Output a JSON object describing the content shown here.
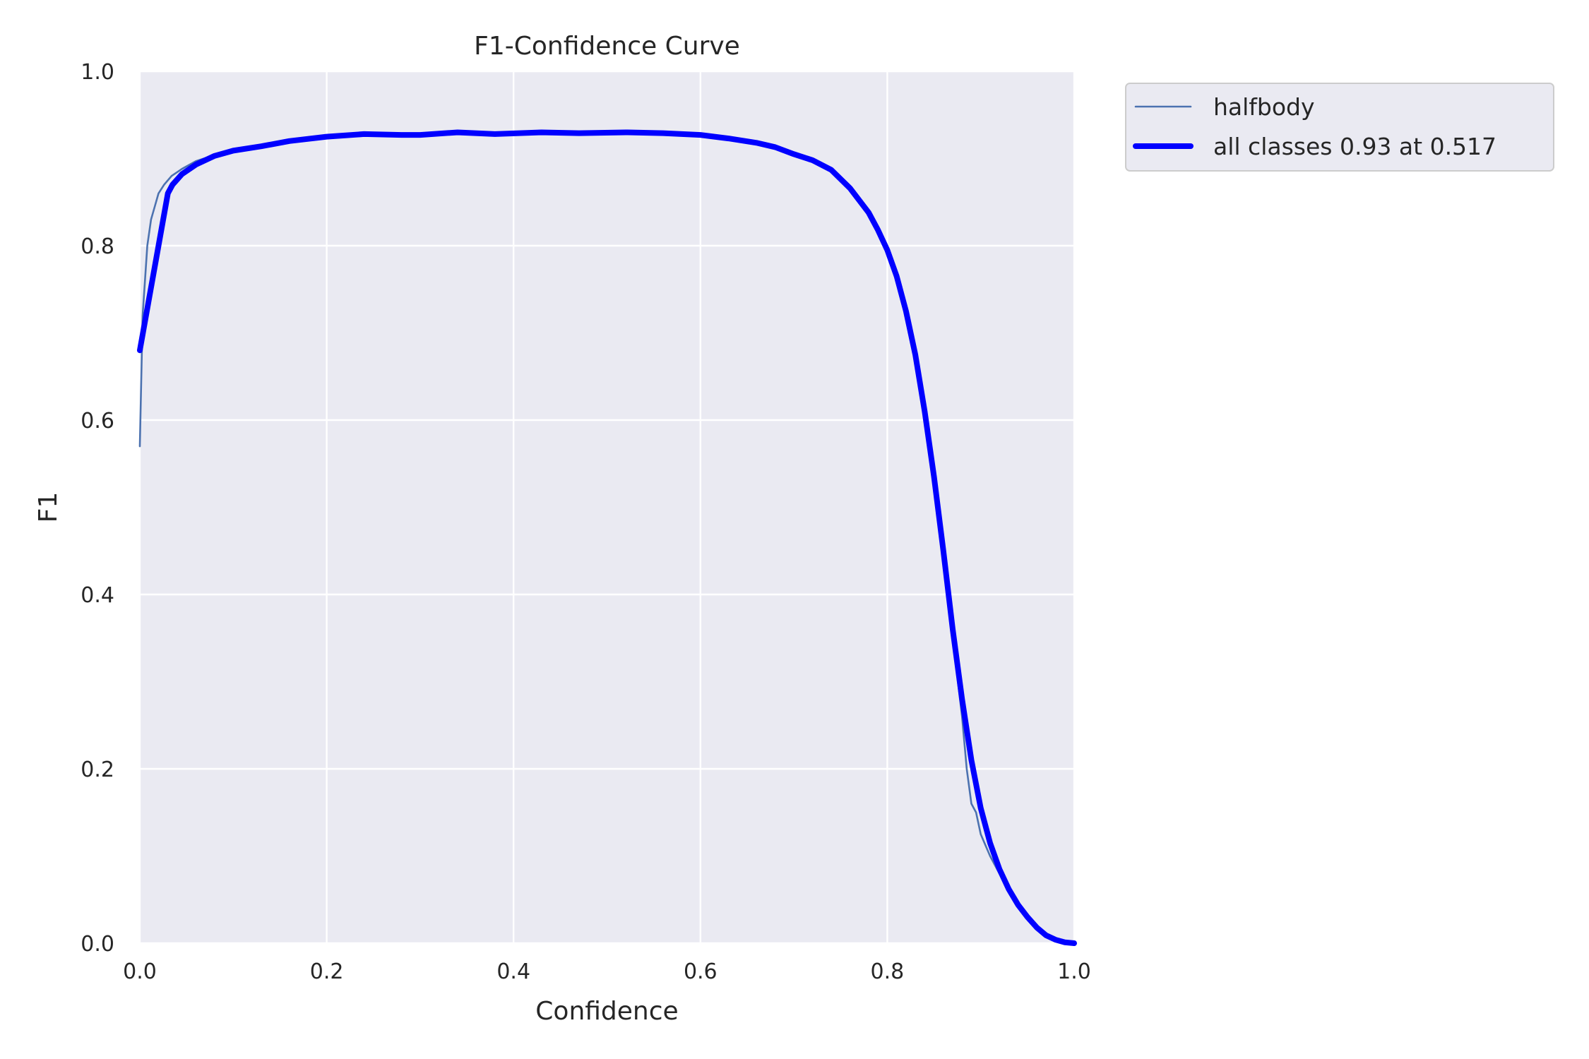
{
  "chart_data": {
    "type": "line",
    "title": "F1-Confidence Curve",
    "xlabel": "Confidence",
    "ylabel": "F1",
    "xlim": [
      0,
      1
    ],
    "ylim": [
      0,
      1
    ],
    "xticks": [
      "0.0",
      "0.2",
      "0.4",
      "0.6",
      "0.8",
      "1.0"
    ],
    "yticks": [
      "0.0",
      "0.2",
      "0.4",
      "0.6",
      "0.8",
      "1.0"
    ],
    "grid": true,
    "legend_position": "outside-top-right",
    "background_color": "#eaeaf2",
    "series": [
      {
        "name": "halfbody",
        "color": "#4c72b0",
        "style": "thin",
        "x": [
          0.0,
          0.003,
          0.008,
          0.012,
          0.016,
          0.02,
          0.026,
          0.034,
          0.045,
          0.06,
          0.08,
          0.1,
          0.13,
          0.16,
          0.2,
          0.24,
          0.28,
          0.3,
          0.34,
          0.38,
          0.43,
          0.47,
          0.52,
          0.56,
          0.6,
          0.63,
          0.66,
          0.68,
          0.7,
          0.72,
          0.74,
          0.76,
          0.78,
          0.79,
          0.8,
          0.81,
          0.82,
          0.83,
          0.84,
          0.85,
          0.86,
          0.87,
          0.88,
          0.885,
          0.89,
          0.895,
          0.9,
          0.91,
          0.92,
          0.93,
          0.94,
          0.95,
          0.96,
          0.97,
          0.98,
          0.99,
          1.0
        ],
        "y": [
          0.57,
          0.72,
          0.8,
          0.83,
          0.845,
          0.86,
          0.87,
          0.88,
          0.888,
          0.897,
          0.904,
          0.91,
          0.914,
          0.92,
          0.925,
          0.928,
          0.927,
          0.927,
          0.93,
          0.928,
          0.93,
          0.929,
          0.93,
          0.929,
          0.927,
          0.923,
          0.918,
          0.913,
          0.905,
          0.898,
          0.888,
          0.868,
          0.84,
          0.82,
          0.8,
          0.77,
          0.73,
          0.68,
          0.61,
          0.53,
          0.44,
          0.35,
          0.26,
          0.2,
          0.16,
          0.15,
          0.125,
          0.1,
          0.08,
          0.062,
          0.046,
          0.032,
          0.02,
          0.01,
          0.004,
          0.002,
          0.0
        ]
      },
      {
        "name": "all classes 0.93 at 0.517",
        "color": "#0000ff",
        "style": "thick",
        "x": [
          0.0,
          0.01,
          0.02,
          0.03,
          0.035,
          0.045,
          0.06,
          0.08,
          0.1,
          0.13,
          0.16,
          0.2,
          0.24,
          0.28,
          0.3,
          0.34,
          0.38,
          0.43,
          0.47,
          0.52,
          0.56,
          0.6,
          0.63,
          0.66,
          0.68,
          0.7,
          0.72,
          0.74,
          0.76,
          0.78,
          0.79,
          0.8,
          0.81,
          0.82,
          0.83,
          0.84,
          0.85,
          0.86,
          0.87,
          0.88,
          0.89,
          0.9,
          0.91,
          0.92,
          0.93,
          0.94,
          0.95,
          0.96,
          0.97,
          0.98,
          0.99,
          1.0
        ],
        "y": [
          0.68,
          0.74,
          0.8,
          0.86,
          0.87,
          0.882,
          0.893,
          0.903,
          0.909,
          0.914,
          0.92,
          0.925,
          0.928,
          0.927,
          0.927,
          0.93,
          0.928,
          0.93,
          0.929,
          0.93,
          0.929,
          0.927,
          0.923,
          0.918,
          0.913,
          0.905,
          0.898,
          0.887,
          0.866,
          0.838,
          0.818,
          0.795,
          0.765,
          0.725,
          0.675,
          0.61,
          0.535,
          0.45,
          0.36,
          0.28,
          0.21,
          0.155,
          0.115,
          0.085,
          0.062,
          0.044,
          0.03,
          0.018,
          0.009,
          0.004,
          0.001,
          0.0
        ]
      }
    ]
  }
}
